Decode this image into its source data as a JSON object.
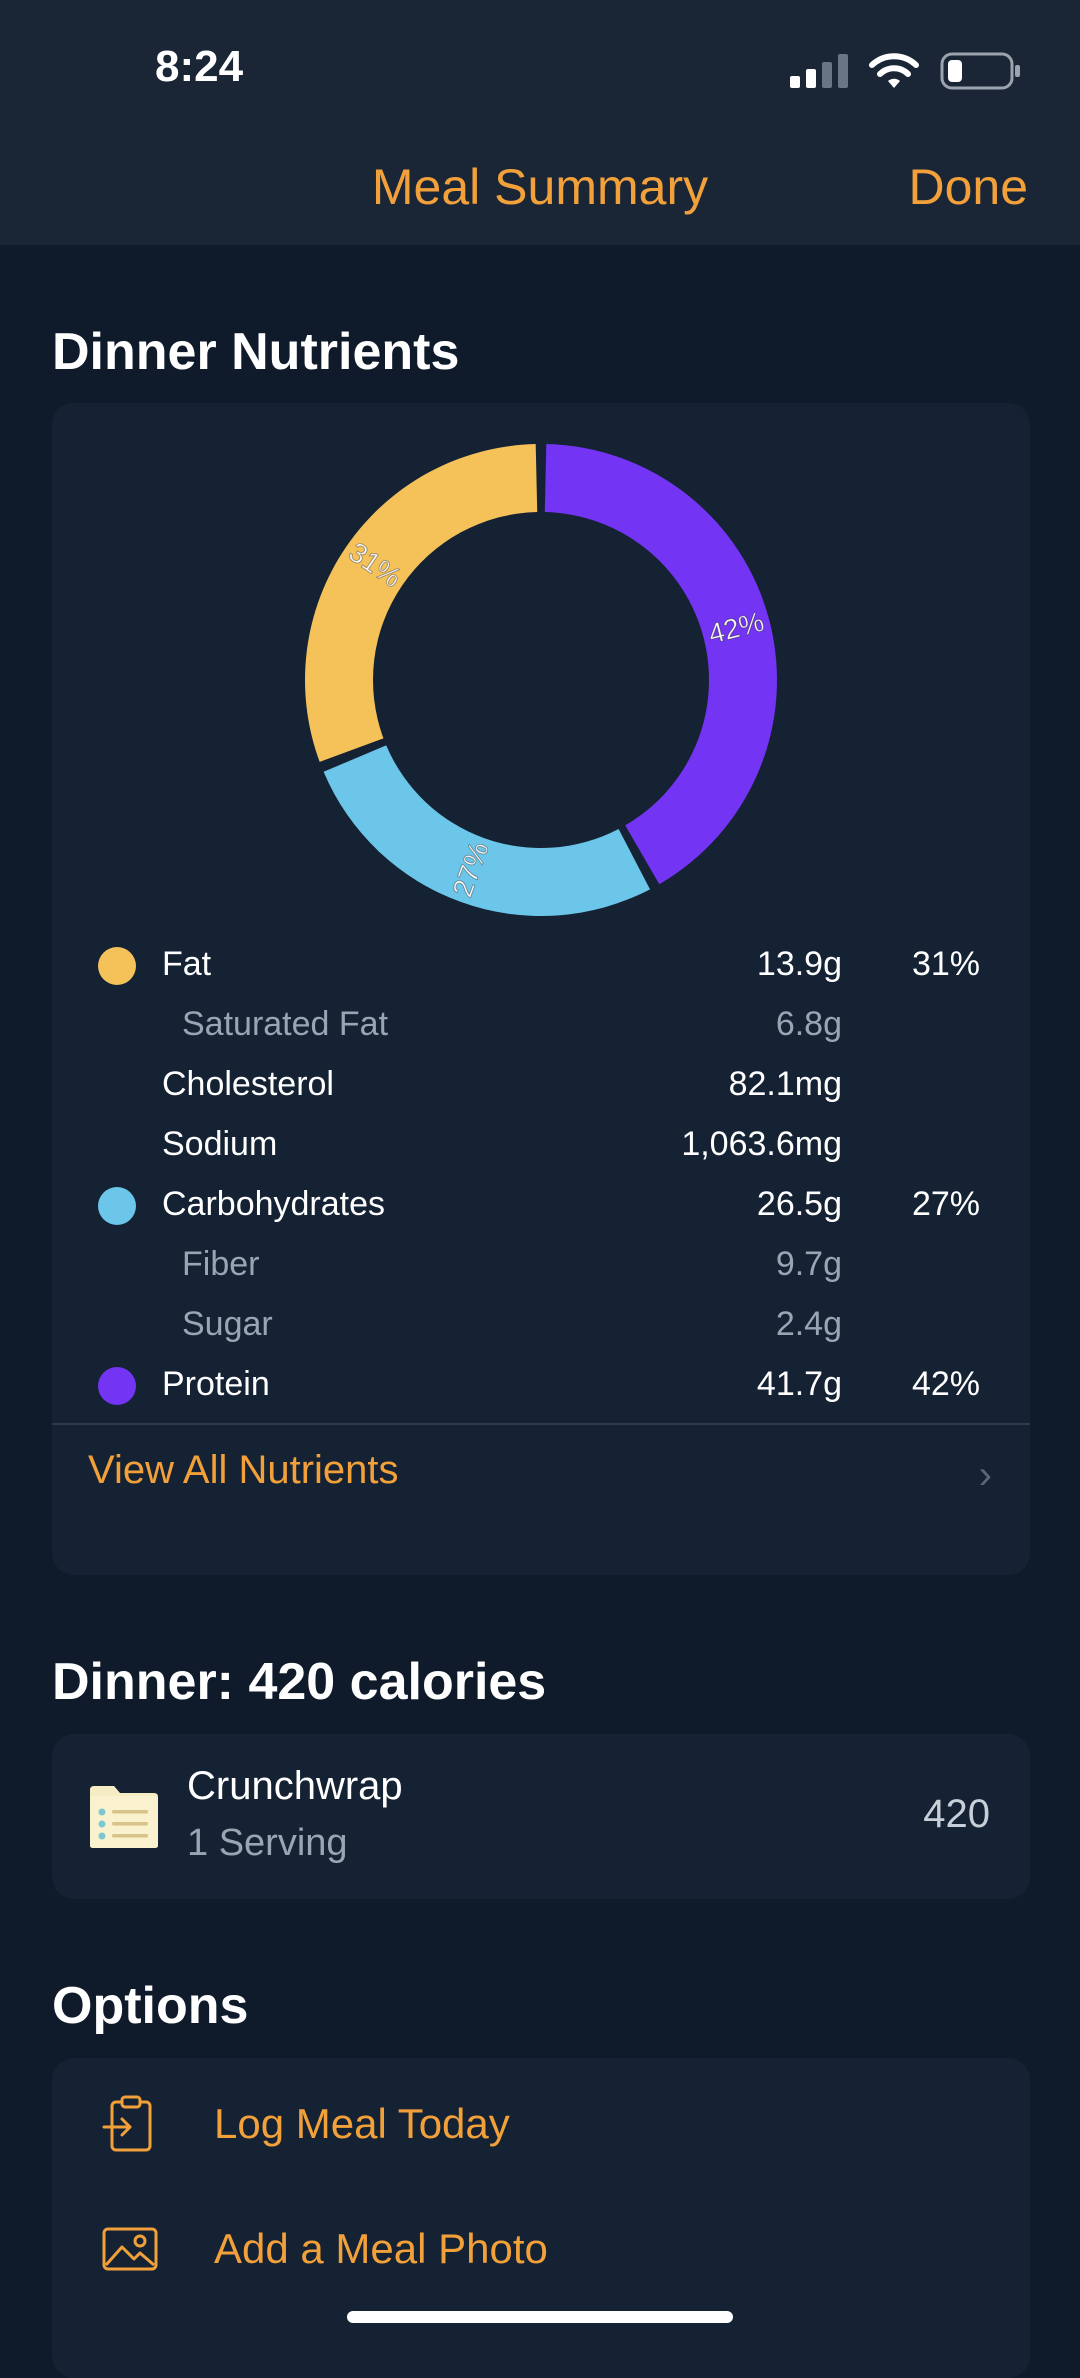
{
  "status_bar": {
    "time": "8:24"
  },
  "nav": {
    "title": "Meal Summary",
    "done_label": "Done"
  },
  "nutrients_section": {
    "heading": "Dinner Nutrients",
    "rows": [
      {
        "label": "Fat",
        "amount": "13.9g",
        "percent": "31%",
        "color": "#f5c25a",
        "indent": false
      },
      {
        "label": "Saturated Fat",
        "amount": "6.8g",
        "percent": "",
        "indent": true
      },
      {
        "label": "Cholesterol",
        "amount": "82.1mg",
        "percent": "",
        "indent": false
      },
      {
        "label": "Sodium",
        "amount": "1,063.6mg",
        "percent": "",
        "indent": false
      },
      {
        "label": "Carbohydrates",
        "amount": "26.5g",
        "percent": "27%",
        "color": "#6cc6ea",
        "indent": false
      },
      {
        "label": "Fiber",
        "amount": "9.7g",
        "percent": "",
        "indent": true
      },
      {
        "label": "Sugar",
        "amount": "2.4g",
        "percent": "",
        "indent": true
      },
      {
        "label": "Protein",
        "amount": "41.7g",
        "percent": "42%",
        "color": "#7334f3",
        "indent": false
      }
    ],
    "view_all_label": "View All Nutrients"
  },
  "chart_data": {
    "type": "pie",
    "categories": [
      "Fat",
      "Carbohydrates",
      "Protein"
    ],
    "values": [
      31,
      27,
      42
    ],
    "labels": [
      "31%",
      "27%",
      "42%"
    ],
    "colors": [
      "#f5c25a",
      "#6cc6ea",
      "#7334f3"
    ]
  },
  "meal_section": {
    "heading": "Dinner: 420 calories",
    "items": [
      {
        "name": "Crunchwrap",
        "serving": "1 Serving",
        "calories": "420"
      }
    ]
  },
  "options_section": {
    "heading": "Options",
    "items": [
      {
        "label": "Log Meal Today",
        "icon": "clipboard-arrow-icon"
      },
      {
        "label": "Add a Meal Photo",
        "icon": "photo-icon"
      }
    ]
  }
}
